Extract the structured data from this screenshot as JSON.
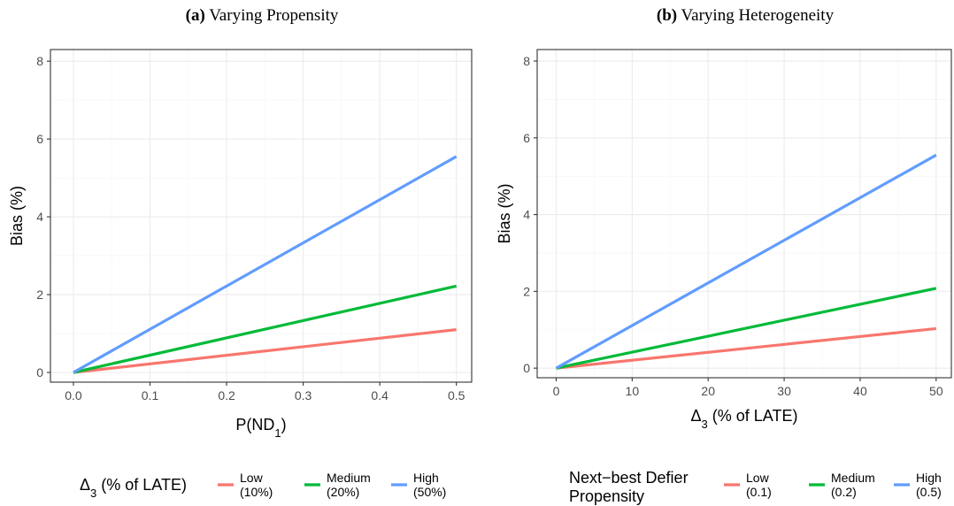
{
  "chart_data": [
    {
      "type": "line",
      "title_tag": "(a)",
      "title": "Varying Propensity",
      "xlabel_main": "P(ND",
      "xlabel_sub": "1",
      "xlabel_end": ")",
      "ylabel": "Bias (%)",
      "xlim": [
        -0.03,
        0.52
      ],
      "ylim": [
        -0.25,
        8.3
      ],
      "xticks": [
        0.0,
        0.1,
        0.2,
        0.3,
        0.4,
        0.5
      ],
      "xtick_labels": [
        "0.0",
        "0.1",
        "0.2",
        "0.3",
        "0.4",
        "0.5"
      ],
      "yticks": [
        0,
        2,
        4,
        6,
        8
      ],
      "ytick_labels": [
        "0",
        "2",
        "4",
        "6",
        "8"
      ],
      "grid": true,
      "legend": {
        "position": "bottom",
        "title_main": "Δ",
        "title_sub": "3",
        "title_end": " (% of LATE)"
      },
      "series": [
        {
          "name": "Low\n(10%)",
          "label_line1": "Low",
          "label_line2": "(10%)",
          "color": "#F8766D",
          "x": [
            0.0,
            0.5
          ],
          "y": [
            0.0,
            1.1
          ]
        },
        {
          "name": "Medium\n(20%)",
          "label_line1": "Medium",
          "label_line2": "(20%)",
          "color": "#00BA38",
          "x": [
            0.0,
            0.5
          ],
          "y": [
            0.0,
            2.22
          ]
        },
        {
          "name": "High\n(50%)",
          "label_line1": "High",
          "label_line2": "(50%)",
          "color": "#619CFF",
          "x": [
            0.0,
            0.5
          ],
          "y": [
            0.0,
            5.55
          ]
        }
      ]
    },
    {
      "type": "line",
      "title_tag": "(b)",
      "title": "Varying Heterogeneity",
      "xlabel_main": "Δ",
      "xlabel_sub": "3",
      "xlabel_end": " (% of LATE)",
      "ylabel": "Bias (%)",
      "xlim": [
        -2.5,
        52
      ],
      "ylim": [
        -0.25,
        8.3
      ],
      "xticks": [
        0,
        10,
        20,
        30,
        40,
        50
      ],
      "xtick_labels": [
        "0",
        "10",
        "20",
        "30",
        "40",
        "50"
      ],
      "yticks": [
        0,
        2,
        4,
        6,
        8
      ],
      "ytick_labels": [
        "0",
        "2",
        "4",
        "6",
        "8"
      ],
      "grid": true,
      "legend": {
        "position": "bottom",
        "title_line1": "Next−best Defier",
        "title_line2": "Propensity"
      },
      "series": [
        {
          "name": "Low\n(0.1)",
          "label_line1": "Low",
          "label_line2": "(0.1)",
          "color": "#F8766D",
          "x": [
            0,
            50
          ],
          "y": [
            0.0,
            1.03
          ]
        },
        {
          "name": "Medium\n(0.2)",
          "label_line1": "Medium",
          "label_line2": "(0.2)",
          "color": "#00BA38",
          "x": [
            0,
            50
          ],
          "y": [
            0.0,
            2.08
          ]
        },
        {
          "name": "High\n(0.5)",
          "label_line1": "High",
          "label_line2": "(0.5)",
          "color": "#619CFF",
          "x": [
            0,
            50
          ],
          "y": [
            0.0,
            5.55
          ]
        }
      ]
    }
  ]
}
